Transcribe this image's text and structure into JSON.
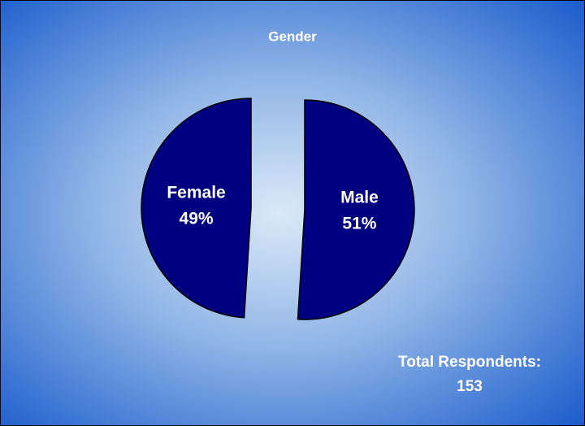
{
  "chart_data": {
    "type": "pie",
    "title": "Gender",
    "categories": [
      "Male",
      "Female"
    ],
    "values": [
      51,
      49
    ],
    "value_labels": [
      "51%",
      "49%"
    ],
    "color": "#000080",
    "annotation": {
      "label": "Total Respondents:",
      "value": 153
    }
  }
}
